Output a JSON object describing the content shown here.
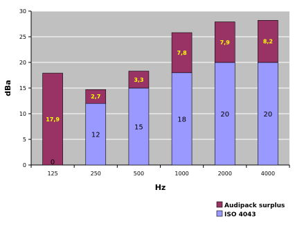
{
  "chart_data": {
    "type": "bar",
    "stacked": true,
    "xlabel": "Hz",
    "ylabel": "dBa",
    "ylim": [
      0,
      30
    ],
    "yticks": [
      0,
      5,
      10,
      15,
      20,
      25,
      30
    ],
    "categories": [
      "125",
      "250",
      "500",
      "1000",
      "2000",
      "4000"
    ],
    "series": [
      {
        "name": "ISO 4043",
        "color": "#9999ff",
        "values": [
          0,
          12,
          15,
          18,
          20,
          20
        ],
        "labels": [
          "0",
          "12",
          "15",
          "18",
          "20",
          "20"
        ]
      },
      {
        "name": "Audipack surplus",
        "color": "#993366",
        "values": [
          17.9,
          2.7,
          3.3,
          7.8,
          7.9,
          8.2
        ],
        "labels": [
          "17,9",
          "2,7",
          "3,3",
          "7,8",
          "7,9",
          "8,2"
        ]
      }
    ],
    "label_color": "#ffff00",
    "plot_background": "#c0c0c0",
    "grid": true,
    "legend_position": "bottom-right"
  }
}
